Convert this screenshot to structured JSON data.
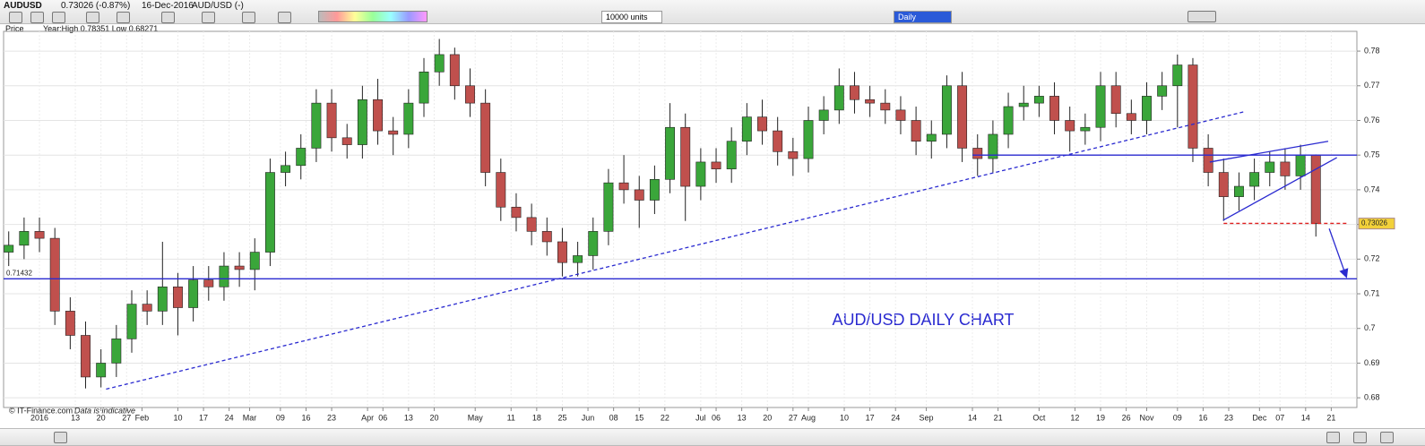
{
  "header": {
    "symbol": "AUDUSD",
    "quote": "0.73026 (-0.87%)",
    "date": "16-Dec-2016",
    "instrument": "AUD/USD (-)",
    "units": "10000 units",
    "interval": "Daily",
    "price_label": "Price",
    "year_range": "Year:High 0.78351 Low 0.68271"
  },
  "footer": {
    "source": "© IT-Finance.com",
    "note": "Data is indicative"
  },
  "chart_data": {
    "type": "candlestick",
    "title": "AUD/USD DAILY CHART",
    "x": [
      -6,
      -3,
      0,
      3,
      6,
      9,
      12,
      15,
      18,
      21,
      24,
      27,
      30,
      33,
      36,
      39,
      42,
      45,
      48,
      51,
      54,
      57,
      60,
      63,
      66,
      69,
      72,
      75,
      78,
      81,
      84,
      87,
      90,
      93,
      96,
      99,
      102,
      105,
      108,
      111,
      114,
      117,
      120,
      123,
      126,
      129,
      132,
      135,
      138,
      141,
      144,
      147,
      150,
      153,
      156,
      159,
      162,
      165,
      168,
      171,
      174,
      177,
      180,
      183,
      186,
      189,
      192,
      195,
      198,
      201,
      204,
      207,
      210,
      213,
      216,
      219,
      222,
      225,
      228,
      231,
      234,
      237,
      240,
      243,
      246,
      249
    ],
    "open": [
      0.722,
      0.724,
      0.728,
      0.726,
      0.705,
      0.698,
      0.686,
      0.69,
      0.697,
      0.707,
      0.705,
      0.712,
      0.706,
      0.714,
      0.712,
      0.718,
      0.717,
      0.722,
      0.745,
      0.747,
      0.752,
      0.765,
      0.755,
      0.753,
      0.766,
      0.757,
      0.756,
      0.765,
      0.774,
      0.779,
      0.77,
      0.765,
      0.745,
      0.735,
      0.732,
      0.728,
      0.725,
      0.719,
      0.721,
      0.728,
      0.742,
      0.74,
      0.737,
      0.743,
      0.758,
      0.741,
      0.748,
      0.746,
      0.754,
      0.761,
      0.757,
      0.751,
      0.749,
      0.76,
      0.763,
      0.77,
      0.766,
      0.765,
      0.763,
      0.76,
      0.754,
      0.756,
      0.77,
      0.752,
      0.749,
      0.756,
      0.764,
      0.765,
      0.767,
      0.76,
      0.757,
      0.758,
      0.77,
      0.762,
      0.76,
      0.767,
      0.77,
      0.776,
      0.752,
      0.745,
      0.738,
      0.741,
      0.745,
      0.748,
      0.744,
      0.75
    ],
    "high": [
      0.728,
      0.732,
      0.732,
      0.729,
      0.709,
      0.702,
      0.694,
      0.701,
      0.711,
      0.711,
      0.725,
      0.716,
      0.718,
      0.718,
      0.722,
      0.722,
      0.726,
      0.749,
      0.751,
      0.756,
      0.769,
      0.769,
      0.759,
      0.77,
      0.772,
      0.761,
      0.769,
      0.778,
      0.78351,
      0.781,
      0.775,
      0.769,
      0.749,
      0.739,
      0.736,
      0.732,
      0.729,
      0.725,
      0.732,
      0.746,
      0.75,
      0.744,
      0.747,
      0.765,
      0.762,
      0.752,
      0.752,
      0.758,
      0.765,
      0.766,
      0.761,
      0.755,
      0.764,
      0.767,
      0.775,
      0.774,
      0.77,
      0.769,
      0.767,
      0.764,
      0.76,
      0.773,
      0.774,
      0.756,
      0.76,
      0.768,
      0.77,
      0.77,
      0.771,
      0.764,
      0.762,
      0.774,
      0.774,
      0.766,
      0.771,
      0.774,
      0.779,
      0.778,
      0.756,
      0.749,
      0.745,
      0.749,
      0.751,
      0.752,
      0.753,
      0.7502
    ],
    "low": [
      0.718,
      0.72,
      0.722,
      0.701,
      0.694,
      0.6827,
      0.683,
      0.686,
      0.693,
      0.701,
      0.701,
      0.698,
      0.702,
      0.708,
      0.708,
      0.712,
      0.711,
      0.718,
      0.741,
      0.743,
      0.748,
      0.751,
      0.749,
      0.749,
      0.753,
      0.75,
      0.752,
      0.761,
      0.77,
      0.766,
      0.761,
      0.741,
      0.731,
      0.728,
      0.724,
      0.721,
      0.715,
      0.715,
      0.717,
      0.724,
      0.736,
      0.729,
      0.733,
      0.739,
      0.731,
      0.737,
      0.742,
      0.742,
      0.75,
      0.753,
      0.747,
      0.744,
      0.745,
      0.756,
      0.759,
      0.762,
      0.761,
      0.759,
      0.756,
      0.75,
      0.749,
      0.752,
      0.748,
      0.744,
      0.745,
      0.752,
      0.76,
      0.761,
      0.756,
      0.751,
      0.753,
      0.754,
      0.758,
      0.756,
      0.756,
      0.763,
      0.758,
      0.748,
      0.741,
      0.731,
      0.734,
      0.737,
      0.741,
      0.74,
      0.74,
      0.7265
    ],
    "close": [
      0.724,
      0.728,
      0.726,
      0.705,
      0.698,
      0.686,
      0.69,
      0.697,
      0.707,
      0.705,
      0.712,
      0.706,
      0.714,
      0.712,
      0.718,
      0.717,
      0.722,
      0.745,
      0.747,
      0.752,
      0.765,
      0.755,
      0.753,
      0.766,
      0.757,
      0.756,
      0.765,
      0.774,
      0.779,
      0.77,
      0.765,
      0.745,
      0.735,
      0.732,
      0.728,
      0.725,
      0.719,
      0.721,
      0.728,
      0.742,
      0.74,
      0.737,
      0.743,
      0.758,
      0.741,
      0.748,
      0.746,
      0.754,
      0.761,
      0.757,
      0.751,
      0.749,
      0.76,
      0.763,
      0.77,
      0.766,
      0.765,
      0.763,
      0.76,
      0.754,
      0.756,
      0.77,
      0.752,
      0.749,
      0.756,
      0.764,
      0.765,
      0.767,
      0.76,
      0.757,
      0.758,
      0.77,
      0.762,
      0.76,
      0.767,
      0.77,
      0.776,
      0.752,
      0.745,
      0.738,
      0.741,
      0.745,
      0.748,
      0.744,
      0.75,
      0.73026
    ],
    "up_color": "#3aa63a",
    "down_color": "#c0504d",
    "xlim": [
      -7,
      257
    ],
    "ylim": [
      0.6772,
      0.7857
    ],
    "yticks": [
      0.68,
      0.69,
      0.7,
      0.71,
      0.72,
      0.73,
      0.74,
      0.75,
      0.76,
      0.77,
      0.78
    ],
    "xticks": [
      {
        "value": 0,
        "label": "2016"
      },
      {
        "value": 7,
        "label": "13"
      },
      {
        "value": 12,
        "label": "20"
      },
      {
        "value": 17,
        "label": "27"
      },
      {
        "value": 20,
        "label": "Feb"
      },
      {
        "value": 27,
        "label": "10"
      },
      {
        "value": 32,
        "label": "17"
      },
      {
        "value": 37,
        "label": "24"
      },
      {
        "value": 41,
        "label": "Mar"
      },
      {
        "value": 47,
        "label": "09"
      },
      {
        "value": 52,
        "label": "16"
      },
      {
        "value": 57,
        "label": "23"
      },
      {
        "value": 64,
        "label": "Apr"
      },
      {
        "value": 67,
        "label": "06"
      },
      {
        "value": 72,
        "label": "13"
      },
      {
        "value": 77,
        "label": "20"
      },
      {
        "value": 85,
        "label": "May"
      },
      {
        "value": 92,
        "label": "11"
      },
      {
        "value": 97,
        "label": "18"
      },
      {
        "value": 102,
        "label": "25"
      },
      {
        "value": 107,
        "label": "Jun"
      },
      {
        "value": 112,
        "label": "08"
      },
      {
        "value": 117,
        "label": "15"
      },
      {
        "value": 122,
        "label": "22"
      },
      {
        "value": 129,
        "label": "Jul"
      },
      {
        "value": 132,
        "label": "06"
      },
      {
        "value": 137,
        "label": "13"
      },
      {
        "value": 142,
        "label": "20"
      },
      {
        "value": 147,
        "label": "27"
      },
      {
        "value": 150,
        "label": "Aug"
      },
      {
        "value": 157,
        "label": "10"
      },
      {
        "value": 162,
        "label": "17"
      },
      {
        "value": 167,
        "label": "24"
      },
      {
        "value": 173,
        "label": "Sep"
      },
      {
        "value": 182,
        "label": "14"
      },
      {
        "value": 187,
        "label": "21"
      },
      {
        "value": 195,
        "label": "Oct"
      },
      {
        "value": 202,
        "label": "12"
      },
      {
        "value": 207,
        "label": "19"
      },
      {
        "value": 212,
        "label": "26"
      },
      {
        "value": 216,
        "label": "Nov"
      },
      {
        "value": 222,
        "label": "09"
      },
      {
        "value": 227,
        "label": "16"
      },
      {
        "value": 232,
        "label": "23"
      },
      {
        "value": 238,
        "label": "Dec"
      },
      {
        "value": 242,
        "label": "07"
      },
      {
        "value": 247,
        "label": "14"
      },
      {
        "value": 252,
        "label": "21"
      }
    ],
    "grid": true,
    "level_label": 0.71432,
    "last_price": 0.73026,
    "lines": [
      {
        "style": "solid",
        "color": "#2a2ad0",
        "x": [
          182,
          257
        ],
        "y": [
          0.75,
          0.75
        ]
      },
      {
        "style": "solid",
        "color": "#2a2ad0",
        "x": [
          -7,
          257
        ],
        "y": [
          0.71432,
          0.71432
        ]
      },
      {
        "style": "dashed",
        "color": "#2a2ad0",
        "x": [
          13,
          235
        ],
        "y": [
          0.6825,
          0.7625
        ]
      },
      {
        "style": "solid",
        "color": "#2a2ad0",
        "x": [
          228.3,
          251.4
        ],
        "y": [
          0.748,
          0.754
        ]
      },
      {
        "style": "solid",
        "color": "#2a2ad0",
        "x": [
          230.9,
          253.1
        ],
        "y": [
          0.7312,
          0.7493
        ]
      },
      {
        "style": "dashed",
        "color": "#e02020",
        "x": [
          231,
          255
        ],
        "y": [
          0.7303,
          0.7303
        ]
      },
      {
        "style": "arrow",
        "color": "#2a2ad0",
        "x": [
          251.6,
          254.9
        ],
        "y": [
          0.7288,
          0.7151
        ]
      }
    ]
  }
}
